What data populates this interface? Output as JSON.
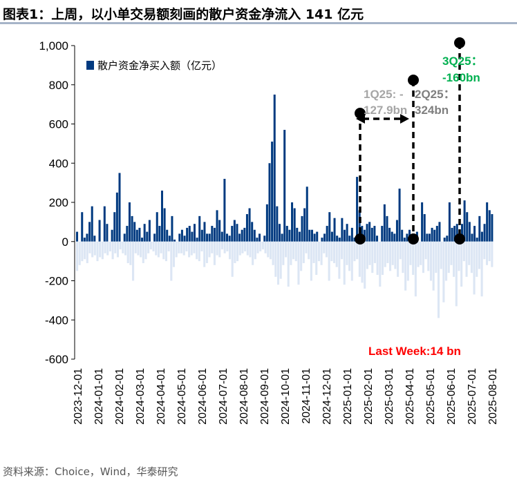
{
  "title": "图表1：上周，以小单交易额刻画的散户资金净流入 141 亿元",
  "source": "资料来源：Choice，Wind，华泰研究",
  "chart_data": {
    "type": "bar",
    "legend": "散户资金净买入额（亿元）",
    "legend_placement": "top-left",
    "ylim": [
      -600,
      1000
    ],
    "yticks": [
      "1,000",
      "800",
      "600",
      "400",
      "200",
      "0",
      "-200",
      "-400",
      "-600"
    ],
    "ytick_values": [
      1000,
      800,
      600,
      400,
      200,
      0,
      -200,
      -400,
      -600
    ],
    "xticks": [
      "2023-12-01",
      "2024-01-01",
      "2024-02-01",
      "2024-03-01",
      "2024-04-01",
      "2024-05-01",
      "2024-06-01",
      "2024-07-01",
      "2024-08-01",
      "2024-09-01",
      "2024-10-01",
      "2024-11-01",
      "2024-12-01",
      "2025-01-01",
      "2025-02-01",
      "2025-03-01",
      "2025-04-01",
      "2025-05-01",
      "2025-06-01",
      "2025-07-01",
      "2025-08-01"
    ],
    "series": [
      {
        "name": "inflow",
        "color": "#003a80",
        "values": [
          50,
          0,
          150,
          20,
          40,
          100,
          180,
          30,
          0,
          110,
          0,
          180,
          90,
          0,
          60,
          150,
          250,
          350,
          0,
          40,
          80,
          200,
          130,
          100,
          60,
          70,
          20,
          90,
          50,
          110,
          0,
          40,
          150,
          80,
          260,
          170,
          60,
          30,
          130,
          10,
          0,
          40,
          60,
          30,
          70,
          80,
          50,
          90,
          20,
          130,
          60,
          100,
          40,
          40,
          80,
          70,
          160,
          110,
          50,
          320,
          40,
          30,
          80,
          110,
          90,
          40,
          60,
          70,
          140,
          170,
          100,
          60,
          20,
          40,
          0,
          30,
          190,
          400,
          510,
          750,
          180,
          90,
          40,
          570,
          80,
          60,
          200,
          170,
          70,
          50,
          130,
          170,
          280,
          60,
          60,
          40,
          50,
          0,
          20,
          40,
          80,
          150,
          50,
          120,
          30,
          20,
          120,
          60,
          90,
          30,
          70,
          20,
          330,
          160,
          80,
          60,
          90,
          100,
          70,
          80,
          30,
          0,
          80,
          190,
          130,
          70,
          50,
          40,
          110,
          270,
          60,
          20,
          40,
          60,
          30,
          20,
          50,
          0,
          200,
          140,
          40,
          40,
          70,
          60,
          80,
          100,
          0,
          20,
          30,
          200,
          70,
          80,
          90,
          50,
          90,
          210,
          150,
          100,
          40,
          80,
          20,
          130,
          50,
          90,
          200,
          160,
          140
        ],
        "colors_note": "dark navy positive bars"
      },
      {
        "name": "outflow",
        "color": "#dce6f4",
        "values": [
          -150,
          -120,
          -100,
          -90,
          -110,
          -60,
          -80,
          -70,
          -100,
          -80,
          -90,
          -60,
          -70,
          -50,
          -90,
          -60,
          -80,
          -40,
          -60,
          -70,
          -110,
          -120,
          -200,
          -60,
          -70,
          -80,
          -110,
          -90,
          -60,
          -40,
          -50,
          -70,
          -80,
          -60,
          -90,
          -100,
          -50,
          -200,
          -130,
          -80,
          -60,
          -60,
          -70,
          -50,
          -80,
          -70,
          -60,
          -90,
          -100,
          -50,
          -130,
          -110,
          -80,
          -60,
          -120,
          -70,
          -80,
          -40,
          -60,
          -50,
          -90,
          -180,
          -110,
          -100,
          -70,
          -60,
          -50,
          -70,
          -80,
          -120,
          -90,
          -60,
          -50,
          -40,
          -60,
          -80,
          -90,
          -120,
          -180,
          -220,
          -190,
          -120,
          -80,
          -230,
          -120,
          -90,
          -100,
          -220,
          -150,
          -110,
          -60,
          -90,
          -200,
          -110,
          -170,
          -100,
          -120,
          -60,
          -80,
          -200,
          -100,
          -110,
          -130,
          -190,
          -90,
          -220,
          -120,
          -150,
          -200,
          -100,
          -90,
          -180,
          -210,
          -240,
          -140,
          -120,
          -160,
          -110,
          -170,
          -230,
          -170,
          -130,
          -110,
          -150,
          -120,
          -140,
          -180,
          -90,
          -160,
          -250,
          -200,
          -120,
          -170,
          -280,
          -130,
          -120,
          -160,
          -90,
          -150,
          -200,
          -250,
          -160,
          -390,
          -140,
          -310,
          -200,
          -160,
          -120,
          -180,
          -330,
          -150,
          -230,
          -100,
          -180,
          -120,
          -160,
          -270,
          -180,
          -140,
          -280,
          -90,
          -120,
          -100,
          -130
        ]
      }
    ],
    "annotations": [
      {
        "text_line1": "1Q25: -",
        "text_line2": "127.9bn",
        "color": "#a6a6a6",
        "x": "2025-02-01"
      },
      {
        "text_line1": "2Q25：",
        "text_line2": "324bn",
        "color": "#7f7f7f",
        "x": "2025-04-01"
      },
      {
        "text_line1": "3Q25：",
        "text_line2": "-160bn",
        "color": "#00b050",
        "x": "2025-07-01"
      },
      {
        "text": "Last Week:14 bn",
        "color": "#ff0000"
      }
    ]
  }
}
